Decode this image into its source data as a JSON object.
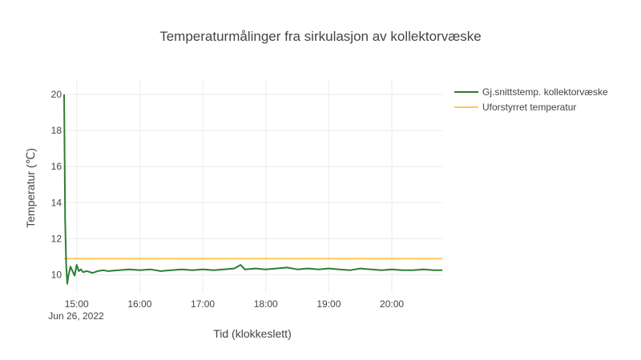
{
  "chart_data": {
    "type": "line",
    "title": "Temperaturmålinger fra sirkulasjon av kollektorvæske",
    "xlabel": "Tid (klokkeslett)",
    "ylabel": "Temperatur (℃)",
    "x_date_label": "Jun 26, 2022",
    "x_ticks": [
      "15:00",
      "16:00",
      "17:00",
      "18:00",
      "19:00",
      "20:00"
    ],
    "x_range": [
      "14:48",
      "20:48"
    ],
    "y_ticks": [
      10,
      12,
      14,
      16,
      18,
      20
    ],
    "ylim": [
      9.0,
      20.8
    ],
    "grid": true,
    "legend_position": "top-right",
    "series": [
      {
        "name": "Gj.snittstemp. kollektorvæske",
        "color": "#2e7d32",
        "x": [
          "14:48",
          "14:49",
          "14:50",
          "14:51",
          "14:52",
          "14:54",
          "14:56",
          "14:58",
          "15:00",
          "15:02",
          "15:04",
          "15:06",
          "15:10",
          "15:15",
          "15:20",
          "15:25",
          "15:30",
          "15:40",
          "15:50",
          "16:00",
          "16:10",
          "16:20",
          "16:30",
          "16:40",
          "16:50",
          "17:00",
          "17:10",
          "17:20",
          "17:30",
          "17:36",
          "17:40",
          "17:50",
          "18:00",
          "18:10",
          "18:20",
          "18:30",
          "18:40",
          "18:50",
          "19:00",
          "19:10",
          "19:20",
          "19:30",
          "19:40",
          "19:50",
          "20:00",
          "20:10",
          "20:20",
          "20:30",
          "20:40",
          "20:48"
        ],
        "y": [
          20.0,
          13.0,
          10.6,
          9.5,
          9.9,
          10.45,
          10.2,
          9.95,
          10.55,
          10.2,
          10.3,
          10.15,
          10.2,
          10.1,
          10.2,
          10.25,
          10.2,
          10.25,
          10.3,
          10.25,
          10.3,
          10.2,
          10.25,
          10.3,
          10.25,
          10.3,
          10.25,
          10.3,
          10.35,
          10.55,
          10.3,
          10.35,
          10.3,
          10.35,
          10.4,
          10.3,
          10.35,
          10.3,
          10.35,
          10.3,
          10.25,
          10.35,
          10.3,
          10.25,
          10.3,
          10.25,
          10.25,
          10.3,
          10.25,
          10.25
        ]
      },
      {
        "name": "Uforstyrret temperatur",
        "color": "#ffc857",
        "x": [
          "14:48",
          "20:48"
        ],
        "y": [
          10.9,
          10.9
        ]
      }
    ]
  }
}
